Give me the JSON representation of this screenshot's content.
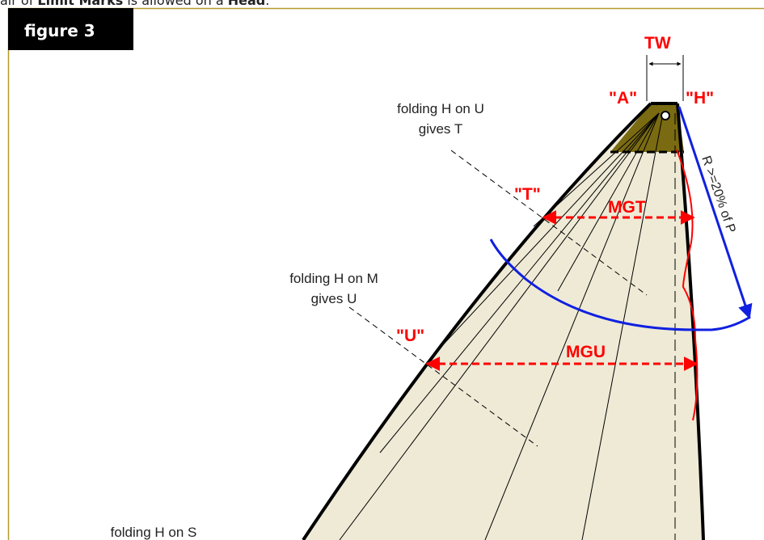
{
  "header": {
    "prefix": "air of ",
    "bold1": "Limit Marks",
    "middle": " is allowed on a ",
    "bold2": "Head",
    "suffix": "."
  },
  "figure": {
    "label": "figure 3",
    "labels": {
      "tw": "TW",
      "a": "\"A\"",
      "h": "\"H\"",
      "t": "\"T\"",
      "u": "\"U\"",
      "mgt": "MGT",
      "mgu": "MGU",
      "radius": "R >=20% of P"
    },
    "notes": [
      [
        "folding H on U",
        "gives T"
      ],
      [
        "folding H on M",
        "gives U"
      ],
      [
        "folding H on S"
      ]
    ]
  }
}
